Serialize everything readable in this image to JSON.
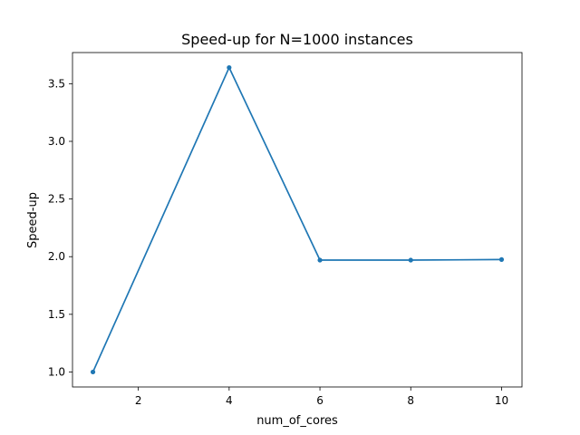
{
  "chart_data": {
    "type": "line",
    "title": "Speed-up for N=1000 instances",
    "xlabel": "num_of_cores",
    "ylabel": "Speed-up",
    "xlim": [
      0.55,
      10.45
    ],
    "ylim": [
      0.87,
      3.77
    ],
    "xticks": [
      2,
      4,
      6,
      8,
      10
    ],
    "yticks": [
      1.0,
      1.5,
      2.0,
      2.5,
      3.0,
      3.5
    ],
    "ytick_labels": [
      "1.0",
      "1.5",
      "2.0",
      "2.5",
      "3.0",
      "3.5"
    ],
    "grid": false,
    "series": [
      {
        "color": "#1f77b4",
        "marker": "point",
        "x": [
          1,
          4,
          6,
          8,
          10
        ],
        "y": [
          1.0,
          3.64,
          1.97,
          1.97,
          1.975
        ]
      }
    ]
  }
}
